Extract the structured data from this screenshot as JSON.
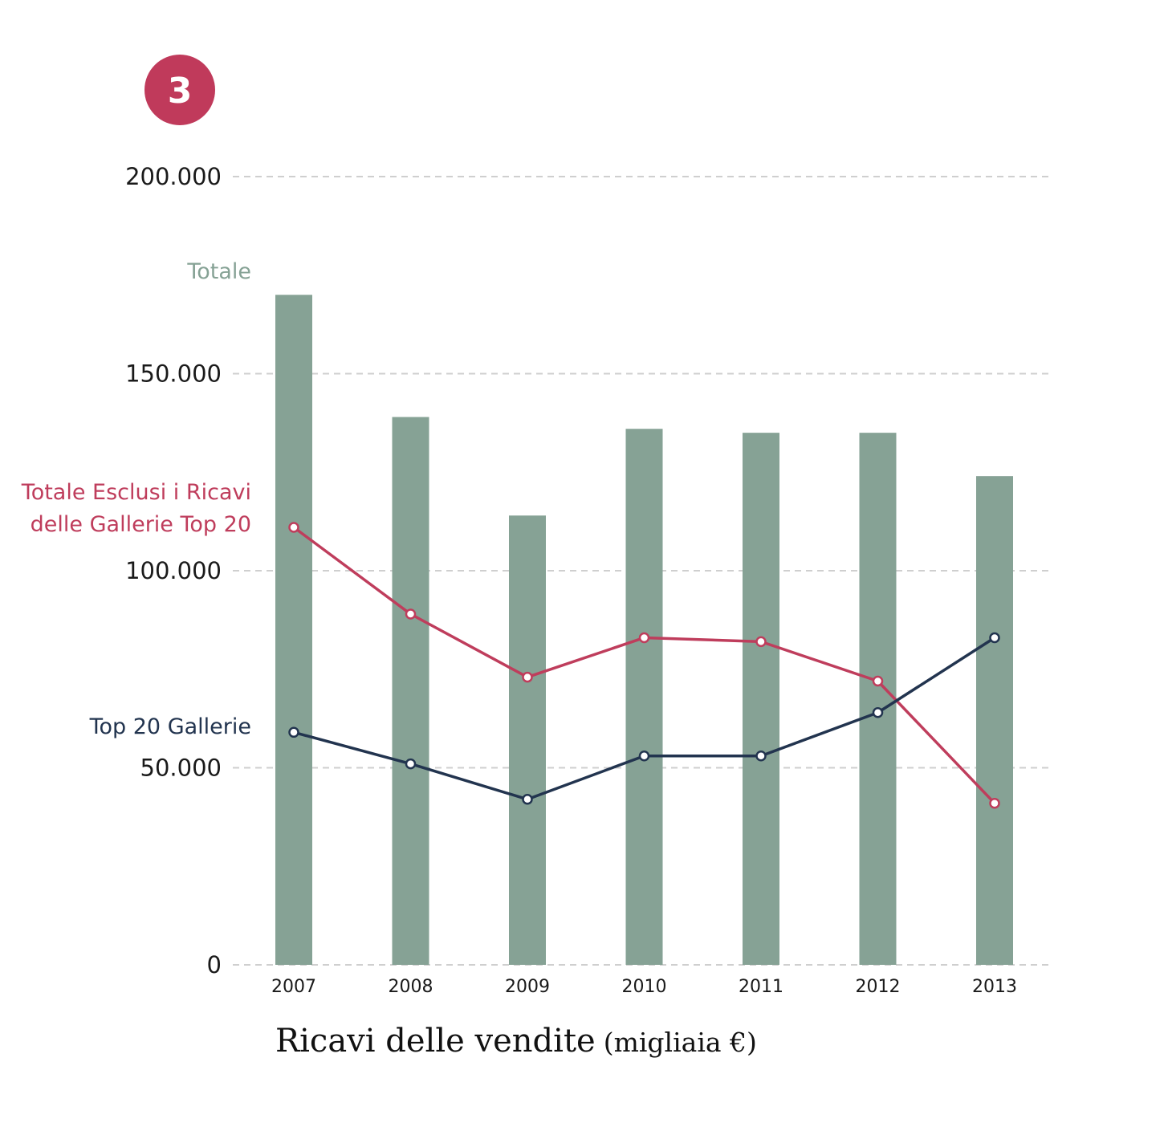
{
  "badge": {
    "number": "3",
    "color": "#c03a5b"
  },
  "chart_data": {
    "type": "bar",
    "title": "Ricavi delle vendite",
    "title_unit": "(migliaia €)",
    "categories": [
      "2007",
      "2008",
      "2009",
      "2010",
      "2011",
      "2012",
      "2013"
    ],
    "ylim": [
      0,
      200000
    ],
    "yticks": [
      0,
      50000,
      100000,
      150000,
      200000
    ],
    "ytick_labels": [
      "0",
      "50.000",
      "100.000",
      "150.000",
      "200.000"
    ],
    "grid": true,
    "series": [
      {
        "name": "Totale",
        "type": "bar",
        "color": "#86a295",
        "values": [
          170000,
          139000,
          114000,
          136000,
          135000,
          135000,
          124000
        ]
      },
      {
        "name": "Totale Esclusi i Ricavi delle Gallerie Top 20",
        "name_lines": [
          "Totale Esclusi i Ricavi",
          "delle Gallerie Top 20"
        ],
        "type": "line",
        "color": "#bf3d5c",
        "values": [
          111000,
          89000,
          73000,
          83000,
          82000,
          72000,
          41000
        ]
      },
      {
        "name": "Top 20 Gallerie",
        "type": "line",
        "color": "#22344f",
        "values": [
          59000,
          51000,
          42000,
          53000,
          53000,
          64000,
          83000
        ]
      }
    ]
  }
}
